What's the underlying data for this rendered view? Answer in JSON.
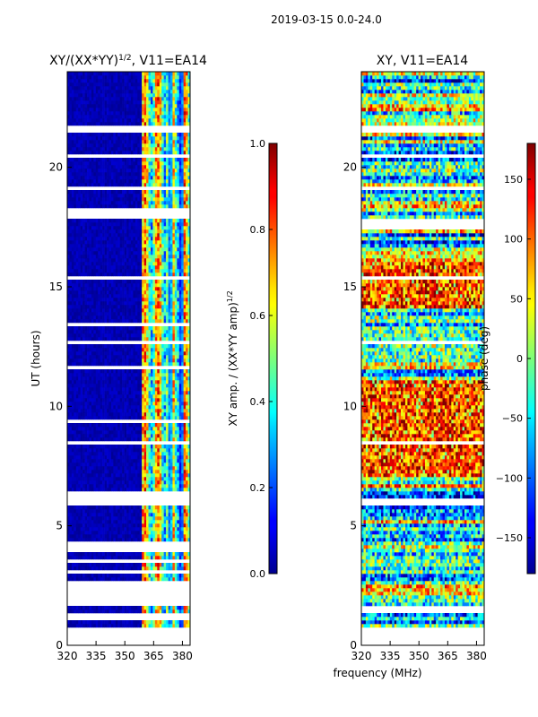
{
  "figure_title": "2019-03-15 0.0-24.0",
  "xlabel_shared": "frequency (MHz)",
  "chart_data": [
    {
      "type": "heatmap",
      "title_main": "XY/(XX*YY)",
      "title_sup": "1/2",
      "title_tail": ", V11=EA14",
      "xlabel": "",
      "ylabel": "UT (hours)",
      "xlim": [
        320,
        384
      ],
      "ylim": [
        0,
        24
      ],
      "xticks": [
        320,
        335,
        350,
        365,
        380
      ],
      "yticks": [
        0,
        5,
        10,
        15,
        20
      ],
      "colorbar": {
        "label_main": "XY amp. / (XX*YY amp)",
        "label_sup": "1/2",
        "range": [
          0.0,
          1.0
        ],
        "ticks": [
          "0.0",
          "0.2",
          "0.4",
          "0.6",
          "0.8",
          "1.0"
        ],
        "tick_values": [
          0.0,
          0.2,
          0.4,
          0.6,
          0.8,
          1.0
        ],
        "colormap": "jet"
      },
      "blank_bands": [
        [
          0.0,
          0.7
        ],
        [
          1.0,
          1.3
        ],
        [
          1.6,
          2.7
        ],
        [
          3.0,
          3.1
        ],
        [
          3.5,
          3.6
        ],
        [
          3.9,
          4.3
        ],
        [
          5.8,
          6.5
        ],
        [
          8.4,
          8.5
        ],
        [
          9.3,
          9.4
        ],
        [
          11.5,
          11.7
        ],
        [
          12.6,
          12.8
        ],
        [
          13.3,
          13.5
        ],
        [
          15.3,
          15.5
        ],
        [
          17.8,
          18.3
        ],
        [
          19.0,
          19.2
        ],
        [
          20.4,
          20.5
        ],
        [
          21.5,
          21.8
        ],
        [
          22.0,
          22.1
        ]
      ],
      "active_freq_range_mhz": [
        358,
        384
      ],
      "notes": "Dense low-amplitude (blue) values below ~358 MHz; high amplitude features concentrated near 362–383 MHz."
    },
    {
      "type": "heatmap",
      "title_main": "XY, V11=EA14",
      "title_sup": "",
      "title_tail": "",
      "xlabel": "frequency (MHz)",
      "ylabel": "",
      "xlim": [
        320,
        384
      ],
      "ylim": [
        0,
        24
      ],
      "xticks": [
        320,
        335,
        350,
        365,
        380
      ],
      "yticks": [
        5,
        10,
        15,
        20
      ],
      "yticks_with_zero": [
        0,
        5,
        10,
        15,
        20
      ],
      "colorbar": {
        "label_main": "phase (deg)",
        "label_sup": "",
        "range": [
          -180,
          180
        ],
        "ticks": [
          "−150",
          "−100",
          "−50",
          "0",
          "50",
          "100",
          "150"
        ],
        "tick_values": [
          -150,
          -100,
          -50,
          0,
          50,
          100,
          150
        ],
        "colormap": "jet"
      },
      "blank_bands": [
        [
          0.0,
          0.7
        ],
        [
          1.0,
          1.1
        ],
        [
          1.4,
          1.6
        ],
        [
          5.8,
          6.2
        ],
        [
          8.4,
          8.5
        ],
        [
          11.5,
          11.6
        ],
        [
          12.6,
          12.8
        ],
        [
          13.3,
          13.4
        ],
        [
          15.3,
          15.5
        ],
        [
          17.4,
          17.8
        ],
        [
          19.0,
          19.2
        ],
        [
          20.4,
          20.5
        ],
        [
          21.5,
          21.8
        ]
      ],
      "notes": "Phase varies across full band; warm (positive) phases dominate 7–11 and 14–16 hours."
    }
  ]
}
